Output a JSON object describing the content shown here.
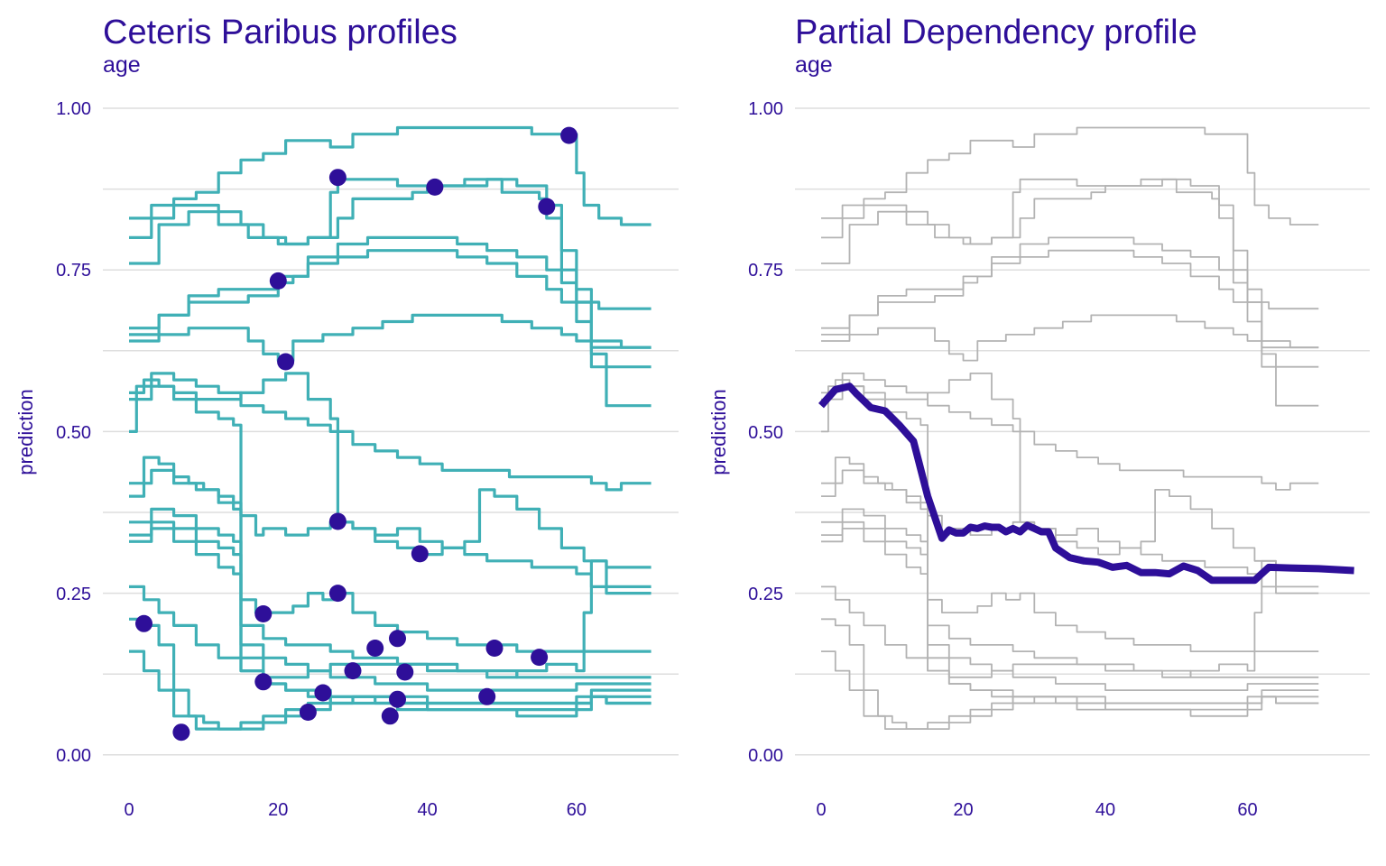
{
  "colors": {
    "text": "#2e0f99",
    "grid": "#dedede",
    "cp_line": "#40b0b6",
    "cp_point": "#2e0f99",
    "bg_line": "#b3b3b3",
    "pd_line": "#2e0f99"
  },
  "chart_data": [
    {
      "type": "line",
      "title": "Ceteris Paribus profiles",
      "subtitle": "age",
      "xlabel": "",
      "ylabel": "prediction",
      "xlim": [
        0,
        70
      ],
      "ylim": [
        0,
        1
      ],
      "xticks": [
        "0",
        "20",
        "40",
        "60"
      ],
      "yticks": [
        "0.00",
        "0.25",
        "0.50",
        "0.75",
        "1.00"
      ],
      "grid": true,
      "legend": "none",
      "series": [
        {
          "x": [
            0,
            3,
            6,
            9,
            12,
            15,
            18,
            21,
            24,
            27,
            30,
            33,
            36,
            39,
            42,
            45,
            48,
            51,
            54,
            57,
            59,
            60,
            61,
            63,
            66,
            70
          ],
          "y": [
            0.83,
            0.85,
            0.86,
            0.87,
            0.9,
            0.92,
            0.93,
            0.95,
            0.95,
            0.94,
            0.96,
            0.96,
            0.97,
            0.97,
            0.97,
            0.97,
            0.97,
            0.97,
            0.96,
            0.96,
            0.96,
            0.9,
            0.85,
            0.83,
            0.82,
            0.82
          ]
        },
        {
          "x": [
            0,
            3,
            6,
            9,
            12,
            15,
            18,
            21,
            24,
            27,
            28,
            30,
            33,
            36,
            39,
            41,
            45,
            50,
            55,
            56,
            58,
            60,
            63,
            66,
            70
          ],
          "y": [
            0.8,
            0.83,
            0.85,
            0.85,
            0.84,
            0.82,
            0.8,
            0.79,
            0.8,
            0.87,
            0.89,
            0.89,
            0.89,
            0.88,
            0.88,
            0.88,
            0.89,
            0.87,
            0.86,
            0.85,
            0.75,
            0.7,
            0.69,
            0.69,
            0.69
          ]
        },
        {
          "x": [
            0,
            4,
            8,
            12,
            16,
            20,
            24,
            28,
            30,
            34,
            38,
            40,
            44,
            48,
            52,
            56,
            58,
            60,
            62,
            66,
            70
          ],
          "y": [
            0.76,
            0.82,
            0.84,
            0.82,
            0.8,
            0.79,
            0.8,
            0.83,
            0.86,
            0.86,
            0.87,
            0.88,
            0.88,
            0.89,
            0.88,
            0.83,
            0.78,
            0.72,
            0.64,
            0.63,
            0.63
          ]
        },
        {
          "x": [
            0,
            4,
            8,
            12,
            16,
            18,
            20,
            22,
            24,
            28,
            32,
            36,
            40,
            44,
            48,
            52,
            56,
            58,
            60,
            62,
            66,
            70
          ],
          "y": [
            0.66,
            0.68,
            0.71,
            0.72,
            0.72,
            0.72,
            0.73,
            0.74,
            0.76,
            0.77,
            0.78,
            0.78,
            0.78,
            0.77,
            0.76,
            0.74,
            0.72,
            0.7,
            0.67,
            0.6,
            0.6,
            0.6
          ]
        },
        {
          "x": [
            0,
            4,
            8,
            12,
            16,
            20,
            24,
            28,
            32,
            36,
            40,
            44,
            48,
            52,
            56,
            58,
            60,
            62,
            64,
            66,
            70
          ],
          "y": [
            0.65,
            0.68,
            0.7,
            0.7,
            0.71,
            0.74,
            0.77,
            0.79,
            0.8,
            0.8,
            0.8,
            0.79,
            0.78,
            0.77,
            0.75,
            0.73,
            0.7,
            0.62,
            0.54,
            0.54,
            0.54
          ]
        },
        {
          "x": [
            0,
            4,
            8,
            12,
            16,
            18,
            20,
            21,
            22,
            26,
            30,
            34,
            38,
            42,
            46,
            50,
            54,
            58,
            60,
            62,
            66,
            70
          ],
          "y": [
            0.64,
            0.65,
            0.66,
            0.66,
            0.64,
            0.62,
            0.61,
            0.61,
            0.64,
            0.65,
            0.66,
            0.67,
            0.68,
            0.68,
            0.68,
            0.67,
            0.66,
            0.65,
            0.64,
            0.63,
            0.63,
            0.63
          ]
        },
        {
          "x": [
            0,
            1,
            3,
            6,
            9,
            12,
            15,
            18,
            21,
            24,
            27,
            30,
            33,
            36,
            39,
            42,
            45,
            48,
            51,
            54,
            57,
            60,
            62,
            64,
            66,
            70
          ],
          "y": [
            0.5,
            0.57,
            0.59,
            0.58,
            0.57,
            0.56,
            0.54,
            0.53,
            0.52,
            0.51,
            0.5,
            0.48,
            0.47,
            0.46,
            0.45,
            0.44,
            0.44,
            0.44,
            0.43,
            0.43,
            0.43,
            0.43,
            0.42,
            0.41,
            0.42,
            0.42
          ]
        },
        {
          "x": [
            0,
            2,
            4,
            6,
            9,
            12,
            15,
            18,
            21,
            24,
            27,
            28,
            30,
            33,
            36,
            39,
            42,
            45,
            47,
            49,
            52,
            55,
            58,
            61,
            64,
            66,
            70
          ],
          "y": [
            0.56,
            0.58,
            0.57,
            0.56,
            0.55,
            0.55,
            0.56,
            0.58,
            0.59,
            0.55,
            0.52,
            0.36,
            0.35,
            0.33,
            0.32,
            0.31,
            0.32,
            0.33,
            0.41,
            0.4,
            0.38,
            0.35,
            0.32,
            0.3,
            0.29,
            0.29,
            0.29
          ]
        },
        {
          "x": [
            0,
            3,
            6,
            9,
            12,
            14,
            15,
            17,
            18,
            21,
            24,
            27,
            30,
            33,
            36,
            39,
            42,
            45,
            48,
            51,
            54,
            57,
            60,
            62,
            64,
            66,
            70
          ],
          "y": [
            0.55,
            0.57,
            0.55,
            0.53,
            0.52,
            0.51,
            0.37,
            0.34,
            0.35,
            0.34,
            0.35,
            0.36,
            0.35,
            0.34,
            0.35,
            0.33,
            0.32,
            0.31,
            0.3,
            0.3,
            0.29,
            0.29,
            0.28,
            0.26,
            0.25,
            0.25,
            0.25
          ]
        },
        {
          "x": [
            0,
            2,
            4,
            6,
            8,
            10,
            12,
            14,
            15,
            17,
            18,
            20,
            22,
            24,
            26,
            28,
            30,
            33,
            36,
            40,
            44,
            48,
            52,
            56,
            60,
            62,
            64,
            66,
            70
          ],
          "y": [
            0.4,
            0.46,
            0.45,
            0.43,
            0.42,
            0.41,
            0.4,
            0.39,
            0.24,
            0.22,
            0.22,
            0.22,
            0.23,
            0.25,
            0.24,
            0.25,
            0.22,
            0.2,
            0.19,
            0.18,
            0.17,
            0.17,
            0.16,
            0.16,
            0.16,
            0.16,
            0.16,
            0.16,
            0.16
          ]
        },
        {
          "x": [
            0,
            3,
            6,
            9,
            12,
            14,
            15,
            18,
            21,
            24,
            27,
            30,
            33,
            36,
            40,
            44,
            48,
            52,
            56,
            60,
            61,
            62,
            64,
            66,
            70
          ],
          "y": [
            0.42,
            0.44,
            0.42,
            0.41,
            0.39,
            0.38,
            0.15,
            0.12,
            0.12,
            0.13,
            0.14,
            0.14,
            0.14,
            0.14,
            0.14,
            0.13,
            0.12,
            0.13,
            0.14,
            0.13,
            0.22,
            0.3,
            0.26,
            0.26,
            0.26
          ]
        },
        {
          "x": [
            0,
            3,
            6,
            9,
            12,
            14,
            15,
            18,
            21,
            24,
            27,
            30,
            33,
            36,
            40,
            44,
            48,
            52,
            56,
            60,
            62,
            64,
            66,
            70
          ],
          "y": [
            0.36,
            0.38,
            0.37,
            0.35,
            0.34,
            0.33,
            0.2,
            0.18,
            0.17,
            0.17,
            0.16,
            0.15,
            0.15,
            0.14,
            0.13,
            0.13,
            0.13,
            0.12,
            0.12,
            0.12,
            0.12,
            0.12,
            0.12,
            0.12
          ]
        },
        {
          "x": [
            0,
            3,
            6,
            9,
            12,
            14,
            15,
            18,
            21,
            24,
            27,
            30,
            33,
            36,
            40,
            44,
            48,
            52,
            56,
            60,
            62,
            64,
            66,
            70
          ],
          "y": [
            0.34,
            0.36,
            0.35,
            0.33,
            0.32,
            0.31,
            0.17,
            0.15,
            0.14,
            0.13,
            0.12,
            0.12,
            0.11,
            0.11,
            0.1,
            0.1,
            0.1,
            0.1,
            0.1,
            0.11,
            0.11,
            0.11,
            0.11,
            0.11
          ]
        },
        {
          "x": [
            0,
            3,
            6,
            9,
            12,
            14,
            15,
            18,
            21,
            24,
            27,
            30,
            33,
            36,
            40,
            44,
            48,
            52,
            56,
            60,
            62,
            64,
            66,
            70
          ],
          "y": [
            0.33,
            0.35,
            0.33,
            0.31,
            0.29,
            0.28,
            0.13,
            0.11,
            0.1,
            0.1,
            0.09,
            0.09,
            0.09,
            0.09,
            0.08,
            0.08,
            0.08,
            0.08,
            0.08,
            0.09,
            0.1,
            0.1,
            0.1,
            0.1
          ]
        },
        {
          "x": [
            0,
            2,
            4,
            6,
            9,
            12,
            15,
            18,
            21,
            24,
            27,
            30,
            33,
            36,
            40,
            44,
            48,
            52,
            56,
            60,
            62,
            64,
            66,
            70
          ],
          "y": [
            0.26,
            0.24,
            0.22,
            0.2,
            0.17,
            0.15,
            0.13,
            0.11,
            0.1,
            0.09,
            0.08,
            0.08,
            0.08,
            0.08,
            0.08,
            0.08,
            0.08,
            0.08,
            0.08,
            0.08,
            0.09,
            0.09,
            0.09,
            0.09
          ]
        },
        {
          "x": [
            0,
            2,
            4,
            6,
            9,
            12,
            15,
            18,
            21,
            24,
            27,
            30,
            33,
            36,
            40,
            44,
            48,
            52,
            56,
            60,
            62,
            64,
            66,
            70
          ],
          "y": [
            0.16,
            0.13,
            0.1,
            0.06,
            0.04,
            0.04,
            0.05,
            0.06,
            0.07,
            0.08,
            0.09,
            0.09,
            0.08,
            0.07,
            0.07,
            0.07,
            0.07,
            0.07,
            0.07,
            0.08,
            0.09,
            0.08,
            0.08,
            0.08
          ]
        },
        {
          "x": [
            0,
            2,
            4,
            6,
            8,
            10,
            12,
            15,
            18,
            21,
            24,
            27,
            30,
            33,
            36,
            40,
            44,
            48,
            52,
            56,
            60,
            62,
            64,
            66,
            70
          ],
          "y": [
            0.21,
            0.2,
            0.17,
            0.1,
            0.06,
            0.05,
            0.04,
            0.04,
            0.05,
            0.06,
            0.07,
            0.08,
            0.09,
            0.09,
            0.08,
            0.07,
            0.07,
            0.07,
            0.06,
            0.06,
            0.07,
            0.09,
            0.08,
            0.08,
            0.08
          ]
        }
      ],
      "points": [
        {
          "x": 2,
          "y": 0.203
        },
        {
          "x": 7,
          "y": 0.035
        },
        {
          "x": 18,
          "y": 0.218
        },
        {
          "x": 18,
          "y": 0.113
        },
        {
          "x": 20,
          "y": 0.733
        },
        {
          "x": 21,
          "y": 0.608
        },
        {
          "x": 24,
          "y": 0.066
        },
        {
          "x": 26,
          "y": 0.096
        },
        {
          "x": 28,
          "y": 0.893
        },
        {
          "x": 28,
          "y": 0.361
        },
        {
          "x": 28,
          "y": 0.25
        },
        {
          "x": 30,
          "y": 0.13
        },
        {
          "x": 33,
          "y": 0.165
        },
        {
          "x": 35,
          "y": 0.06
        },
        {
          "x": 36,
          "y": 0.18
        },
        {
          "x": 36,
          "y": 0.086
        },
        {
          "x": 37,
          "y": 0.128
        },
        {
          "x": 39,
          "y": 0.311
        },
        {
          "x": 41,
          "y": 0.878
        },
        {
          "x": 48,
          "y": 0.09
        },
        {
          "x": 49,
          "y": 0.165
        },
        {
          "x": 55,
          "y": 0.151
        },
        {
          "x": 56,
          "y": 0.848
        },
        {
          "x": 59,
          "y": 0.958
        }
      ]
    },
    {
      "type": "line",
      "title": "Partial Dependency profile",
      "subtitle": "age",
      "xlabel": "",
      "ylabel": "prediction",
      "xlim": [
        0,
        75
      ],
      "ylim": [
        0,
        1
      ],
      "xticks": [
        "0",
        "20",
        "40",
        "60"
      ],
      "yticks": [
        "0.00",
        "0.25",
        "0.50",
        "0.75",
        "1.00"
      ],
      "grid": true,
      "legend": "none",
      "series": [
        {
          "x": [
            0,
            2,
            4,
            5,
            7,
            9,
            11,
            13,
            15,
            17,
            18,
            19,
            20,
            21,
            22,
            23,
            24,
            25,
            26,
            27,
            28,
            29,
            30,
            31,
            32,
            33,
            35,
            37,
            39,
            41,
            43,
            45,
            47,
            49,
            51,
            53,
            55,
            57,
            59,
            61,
            63,
            66,
            70,
            75
          ],
          "y": [
            0.54,
            0.565,
            0.57,
            0.558,
            0.537,
            0.532,
            0.51,
            0.485,
            0.4,
            0.335,
            0.348,
            0.343,
            0.343,
            0.352,
            0.35,
            0.354,
            0.352,
            0.352,
            0.345,
            0.35,
            0.345,
            0.355,
            0.35,
            0.345,
            0.345,
            0.32,
            0.305,
            0.3,
            0.298,
            0.29,
            0.293,
            0.282,
            0.282,
            0.28,
            0.292,
            0.285,
            0.27,
            0.27,
            0.27,
            0.27,
            0.29,
            0.289,
            0.288,
            0.285
          ]
        }
      ]
    }
  ]
}
